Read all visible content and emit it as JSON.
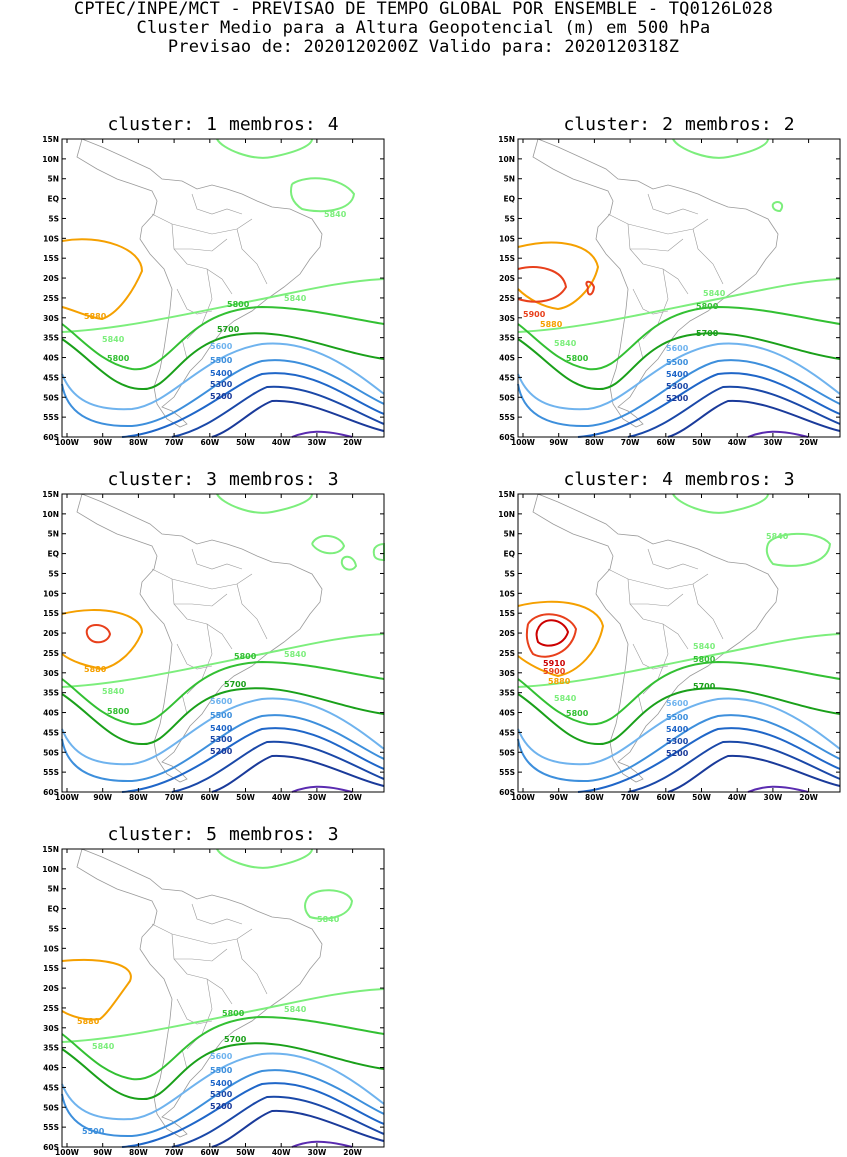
{
  "header": {
    "line1": "CPTEC/INPE/MCT - PREVISAO DE TEMPO GLOBAL POR ENSEMBLE - TQ0126L028",
    "line2": "Cluster Medio para a Altura Geopotencial (m) em 500 hPa",
    "line3": "Previsao de: 2020120200Z   Valido para: 2020120318Z"
  },
  "axes": {
    "lat_ticks": [
      "15N",
      "10N",
      "5N",
      "EQ",
      "5S",
      "10S",
      "15S",
      "20S",
      "25S",
      "30S",
      "35S",
      "40S",
      "45S",
      "50S",
      "55S",
      "60S"
    ],
    "lon_ticks": [
      "100W",
      "90W",
      "80W",
      "70W",
      "60W",
      "50W",
      "40W",
      "30W",
      "20W"
    ]
  },
  "colors": {
    "c5910": "#cc0000",
    "c5900": "#e8401c",
    "c5880": "#f5a000",
    "c5840": "#7cee7c",
    "c5800": "#33c033",
    "c5700": "#1aa01a",
    "c5600": "#6fb3ee",
    "c5500": "#3d8fdc",
    "c5400": "#1f66c8",
    "c5300": "#1a48a8",
    "c5200": "#1a3a9a",
    "c5100": "#5a2bb0"
  },
  "panels": [
    {
      "cluster_label": "cluster:",
      "cluster": "1",
      "membros_label": "membros:",
      "membros": "4",
      "labels": [
        "5880",
        "5840",
        "5800",
        "5840",
        "5800",
        "5700",
        "5600",
        "5500",
        "5400",
        "5300",
        "5200",
        "5840"
      ]
    },
    {
      "cluster_label": "cluster:",
      "cluster": "2",
      "membros_label": "membros:",
      "membros": "2",
      "labels": [
        "5900",
        "5880",
        "5840",
        "5800",
        "5840",
        "5800",
        "5700",
        "5600",
        "5500",
        "5400",
        "5300",
        "5200"
      ]
    },
    {
      "cluster_label": "cluster:",
      "cluster": "3",
      "membros_label": "membros:",
      "membros": "3",
      "labels": [
        "5880",
        "5840",
        "5800",
        "5840",
        "5800",
        "5700",
        "5600",
        "5500",
        "5400",
        "5300",
        "5200"
      ]
    },
    {
      "cluster_label": "cluster:",
      "cluster": "4",
      "membros_label": "membros:",
      "membros": "3",
      "labels": [
        "5910",
        "5900",
        "5880",
        "5840",
        "5800",
        "5840",
        "5800",
        "5700",
        "5600",
        "5500",
        "5400",
        "5300",
        "5200",
        "5840"
      ]
    },
    {
      "cluster_label": "cluster:",
      "cluster": "5",
      "membros_label": "membros:",
      "membros": "3",
      "labels": [
        "5880",
        "5840",
        "5800",
        "5840",
        "5700",
        "5600",
        "5500",
        "5400",
        "5300",
        "5200",
        "5500",
        "5840"
      ]
    }
  ]
}
